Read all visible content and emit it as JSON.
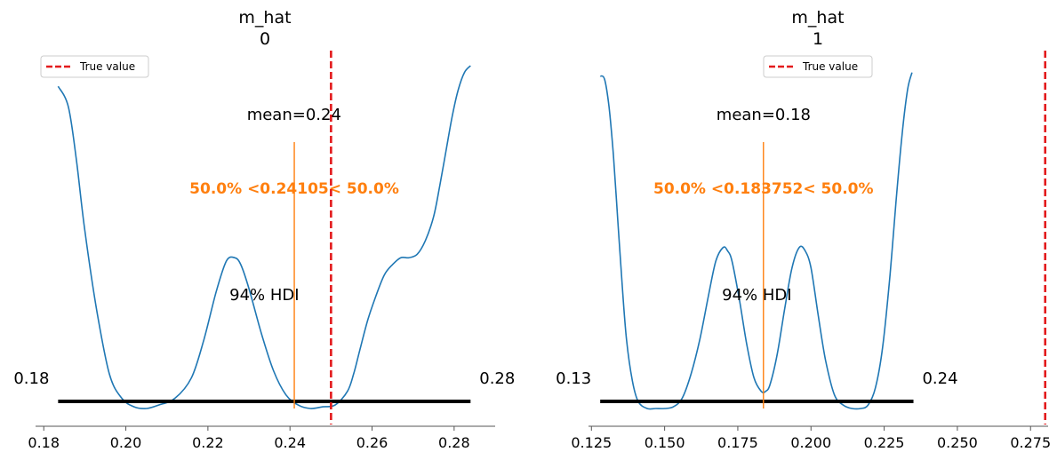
{
  "chart_data": [
    {
      "type": "line",
      "title": "m_hat\n0",
      "title_lines": [
        "m_hat",
        "0"
      ],
      "xlim": [
        0.178,
        0.29
      ],
      "x_ticks": [
        0.18,
        0.2,
        0.22,
        0.24,
        0.26,
        0.28
      ],
      "x_tick_labels": [
        "0.18",
        "0.20",
        "0.22",
        "0.24",
        "0.26",
        "0.28"
      ],
      "density_curve": {
        "x": [
          0.1835,
          0.186,
          0.188,
          0.19,
          0.193,
          0.196,
          0.199,
          0.202,
          0.205,
          0.208,
          0.212,
          0.216,
          0.219,
          0.222,
          0.2245,
          0.2265,
          0.228,
          0.23,
          0.233,
          0.236,
          0.239,
          0.242,
          0.245,
          0.248,
          0.251,
          0.254,
          0.2555,
          0.257,
          0.259,
          0.261,
          0.263,
          0.265,
          0.267,
          0.269,
          0.271,
          0.273,
          0.275,
          0.2765,
          0.278,
          0.2795,
          0.281,
          0.2825,
          0.284
        ],
        "density": [
          0.94,
          0.88,
          0.72,
          0.52,
          0.28,
          0.1,
          0.03,
          0.005,
          0.0,
          0.01,
          0.03,
          0.09,
          0.2,
          0.34,
          0.43,
          0.44,
          0.42,
          0.35,
          0.22,
          0.11,
          0.04,
          0.01,
          0.0,
          0.005,
          0.01,
          0.05,
          0.1,
          0.17,
          0.26,
          0.33,
          0.39,
          0.42,
          0.44,
          0.44,
          0.45,
          0.49,
          0.56,
          0.65,
          0.75,
          0.85,
          0.93,
          0.98,
          1.0
        ]
      },
      "hdi_94": [
        0.1835,
        0.284
      ],
      "hdi_label": "94% HDI",
      "hdi_low_label": "0.18",
      "hdi_high_label": "0.28",
      "mean": 0.241,
      "mean_label": "mean=0.24",
      "ref_value": 0.24105,
      "ref_label": "50.0% <0.24105< 50.0%",
      "true_value": 0.25,
      "legend": {
        "label": "True value",
        "placement": "upper-left"
      },
      "colors": {
        "density": "#1f77b4",
        "ref": "#ff7f0e",
        "true": "#e31a1c",
        "hdi": "#000000",
        "axis": "#555555"
      }
    },
    {
      "type": "line",
      "title": "m_hat\n1",
      "title_lines": [
        "m_hat",
        "1"
      ],
      "xlim": [
        0.124,
        0.281
      ],
      "x_ticks": [
        0.125,
        0.15,
        0.175,
        0.2,
        0.225,
        0.25,
        0.275
      ],
      "x_tick_labels": [
        "0.125",
        "0.150",
        "0.175",
        "0.200",
        "0.225",
        "0.250",
        "0.275"
      ],
      "density_curve": {
        "x": [
          0.128,
          0.1295,
          0.131,
          0.1325,
          0.134,
          0.1355,
          0.137,
          0.139,
          0.141,
          0.144,
          0.147,
          0.15,
          0.153,
          0.156,
          0.159,
          0.162,
          0.165,
          0.1675,
          0.17,
          0.1715,
          0.173,
          0.1755,
          0.178,
          0.1805,
          0.183,
          0.1845,
          0.186,
          0.1885,
          0.191,
          0.1935,
          0.196,
          0.198,
          0.2,
          0.2025,
          0.205,
          0.208,
          0.211,
          0.214,
          0.217,
          0.2195,
          0.222,
          0.2245,
          0.227,
          0.229,
          0.231,
          0.233,
          0.2345
        ],
        "density": [
          0.97,
          0.96,
          0.88,
          0.74,
          0.55,
          0.36,
          0.2,
          0.08,
          0.02,
          0.0,
          0.0,
          0.0,
          0.005,
          0.03,
          0.1,
          0.2,
          0.33,
          0.43,
          0.47,
          0.46,
          0.43,
          0.32,
          0.19,
          0.09,
          0.05,
          0.05,
          0.07,
          0.16,
          0.29,
          0.41,
          0.47,
          0.46,
          0.41,
          0.27,
          0.14,
          0.04,
          0.01,
          0.0,
          0.0,
          0.01,
          0.06,
          0.18,
          0.39,
          0.6,
          0.79,
          0.93,
          0.98
        ]
      },
      "hdi_94": [
        0.128,
        0.235
      ],
      "hdi_label": "94% HDI",
      "hdi_low_label": "0.13",
      "hdi_high_label": "0.24",
      "mean": 0.1838,
      "mean_label": "mean=0.18",
      "ref_value": 0.183752,
      "ref_label": "50.0% <0.183752< 50.0%",
      "true_value": 0.28,
      "legend": {
        "label": "True value",
        "placement": "upper-center"
      },
      "colors": {
        "density": "#1f77b4",
        "ref": "#ff7f0e",
        "true": "#e31a1c",
        "hdi": "#000000",
        "axis": "#555555"
      }
    }
  ]
}
